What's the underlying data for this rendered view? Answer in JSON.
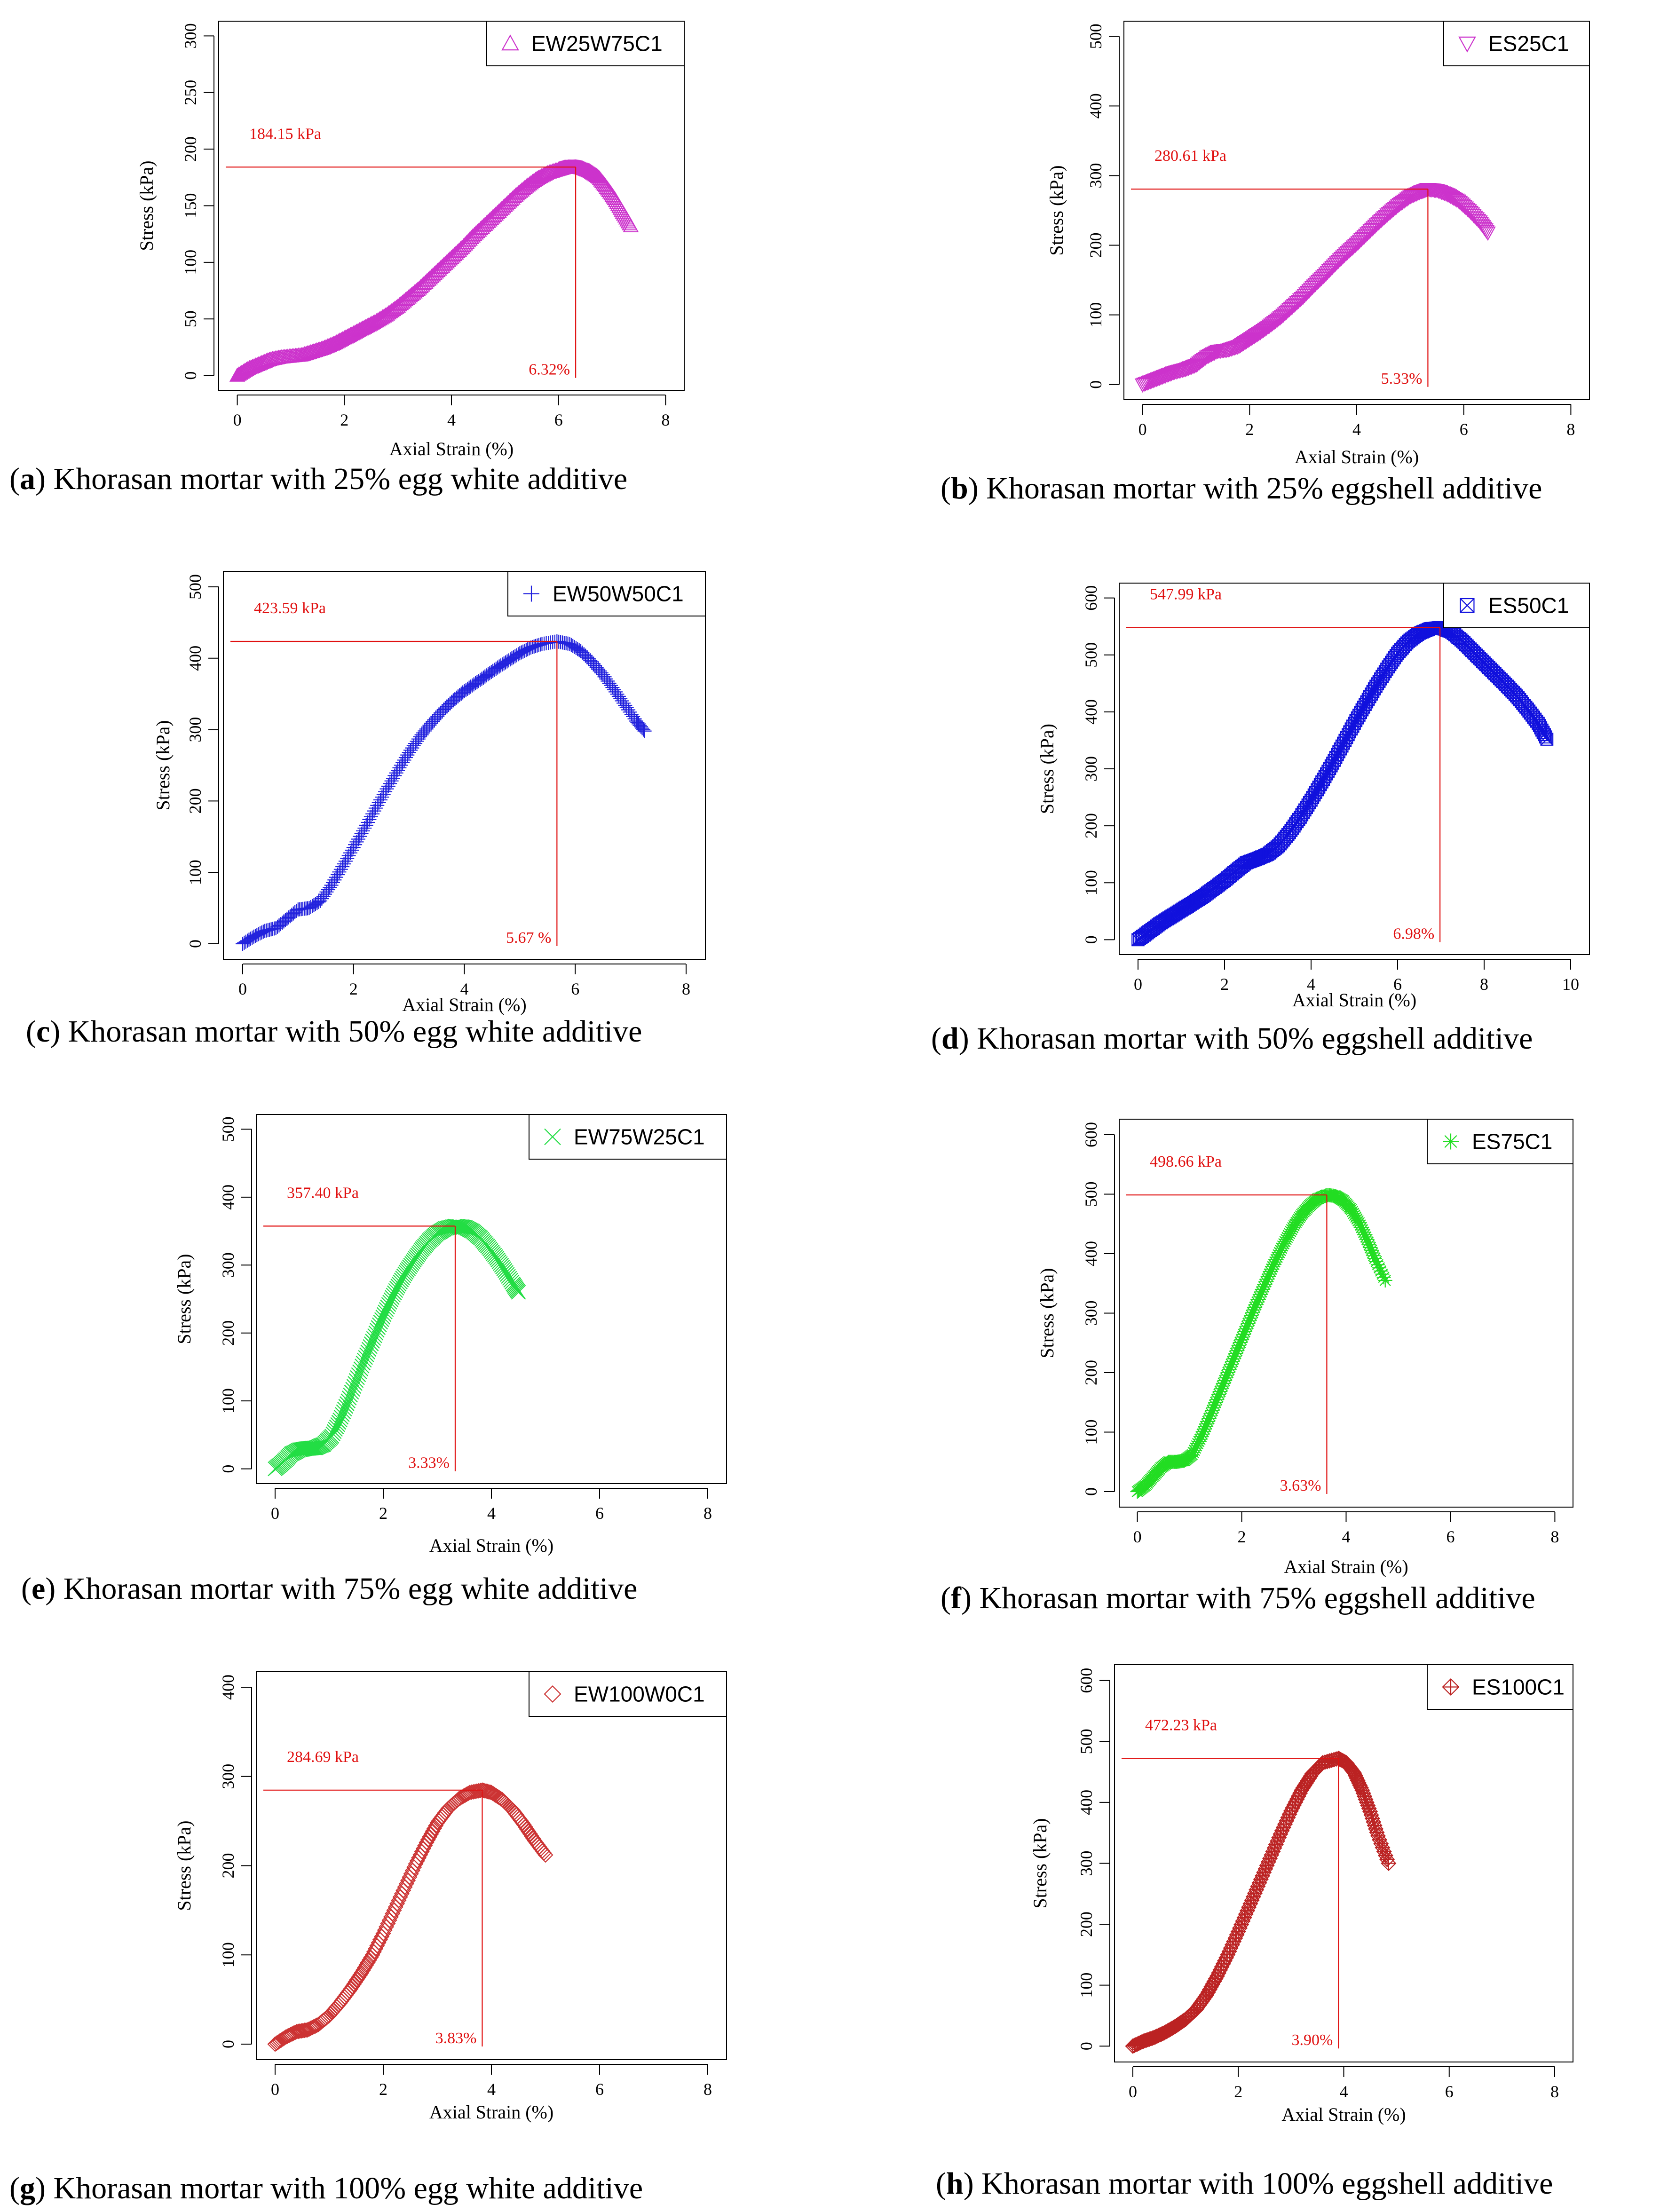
{
  "figure": {
    "panels": [
      {
        "id": "a",
        "caption_letter": "a",
        "caption_text": "Khorasan mortar with 25% egg white additive",
        "color": "#cc33cc",
        "marker": "triangle-up",
        "peak_label": "184.15 kPa",
        "strain_label": "6.32%"
      },
      {
        "id": "b",
        "caption_letter": "b",
        "caption_text": "Khorasan mortar with 25% eggshell additive",
        "color": "#cc33cc",
        "marker": "triangle-down",
        "peak_label": "280.61 kPa",
        "strain_label": "5.33%"
      },
      {
        "id": "c",
        "caption_letter": "c",
        "caption_text": "Khorasan mortar with 50% egg white additive",
        "color": "#2222dd",
        "marker": "plus",
        "peak_label": "423.59 kPa",
        "strain_label": "5.67 %"
      },
      {
        "id": "d",
        "caption_letter": "d",
        "caption_text": "Khorasan mortar with 50% eggshell additive",
        "color": "#1111dd",
        "marker": "square-x",
        "peak_label": "547.99 kPa",
        "strain_label": "6.98%"
      },
      {
        "id": "e",
        "caption_letter": "e",
        "caption_text": "Khorasan mortar with 75% egg white additive",
        "color": "#22dd44",
        "marker": "x",
        "peak_label": "357.40 kPa",
        "strain_label": "3.33%"
      },
      {
        "id": "f",
        "caption_letter": "f",
        "caption_text": "Khorasan mortar with 75% eggshell additive",
        "color": "#22dd22",
        "marker": "asterisk",
        "peak_label": "498.66 kPa",
        "strain_label": "3.63%"
      },
      {
        "id": "g",
        "caption_letter": "g",
        "caption_text": "Khorasan mortar with 100% egg white additive",
        "color": "#cc3333",
        "marker": "diamond",
        "peak_label": "284.69 kPa",
        "strain_label": "3.83%"
      },
      {
        "id": "h",
        "caption_letter": "h",
        "caption_text": "Khorasan mortar with 100% eggshell additive",
        "color": "#bb2222",
        "marker": "diamond-plus",
        "peak_label": "472.23 kPa",
        "strain_label": "3.90%"
      }
    ]
  },
  "chart_data": [
    {
      "type": "scatter",
      "panel": "a",
      "xlabel": "Axial Strain (%)",
      "ylabel": "Stress (kPa)",
      "xlim": [
        0,
        8
      ],
      "ylim": [
        0,
        300
      ],
      "xticks": [
        0,
        2,
        4,
        6,
        8
      ],
      "yticks": [
        0,
        50,
        100,
        150,
        200,
        250,
        300
      ],
      "legend": "EW25W75C1",
      "legend_position": "top-right",
      "peak": {
        "strain": 6.32,
        "stress": 184.15
      },
      "x": [
        0,
        0.2,
        0.4,
        0.6,
        0.8,
        1.0,
        1.2,
        1.4,
        1.6,
        1.8,
        2.0,
        2.2,
        2.4,
        2.6,
        2.8,
        3.0,
        3.2,
        3.4,
        3.6,
        3.8,
        4.0,
        4.2,
        4.4,
        4.6,
        4.8,
        5.0,
        5.2,
        5.4,
        5.6,
        5.8,
        6.0,
        6.1,
        6.2,
        6.32,
        6.45,
        6.6,
        6.75,
        6.9,
        7.05,
        7.2,
        7.35
      ],
      "y": [
        0,
        6,
        10,
        14,
        16,
        17,
        18,
        21,
        24,
        28,
        33,
        38,
        43,
        48,
        54,
        61,
        69,
        77,
        86,
        95,
        104,
        113,
        123,
        132,
        141,
        150,
        159,
        167,
        174,
        179,
        182,
        183.5,
        184,
        184.15,
        183,
        180,
        175,
        166,
        156,
        144,
        132
      ]
    },
    {
      "type": "scatter",
      "panel": "b",
      "xlabel": "Axial Strain (%)",
      "ylabel": "Stress (kPa)",
      "xlim": [
        0,
        8
      ],
      "ylim": [
        0,
        500
      ],
      "xticks": [
        0,
        2,
        4,
        6,
        8
      ],
      "yticks": [
        0,
        100,
        200,
        300,
        400,
        500
      ],
      "legend": "ES25C1",
      "legend_position": "top-right",
      "peak": {
        "strain": 5.33,
        "stress": 280.61
      },
      "x": [
        0,
        0.2,
        0.4,
        0.6,
        0.8,
        1.0,
        1.2,
        1.4,
        1.6,
        1.8,
        2.0,
        2.2,
        2.4,
        2.6,
        2.8,
        3.0,
        3.2,
        3.4,
        3.6,
        3.8,
        4.0,
        4.2,
        4.4,
        4.6,
        4.8,
        5.0,
        5.2,
        5.33,
        5.5,
        5.7,
        5.9,
        6.1,
        6.3,
        6.45
      ],
      "y": [
        0,
        6,
        12,
        18,
        22,
        28,
        40,
        48,
        50,
        55,
        65,
        75,
        86,
        98,
        112,
        126,
        142,
        157,
        173,
        188,
        202,
        217,
        232,
        246,
        259,
        270,
        277,
        280.61,
        279,
        273,
        264,
        250,
        234,
        218
      ]
    },
    {
      "type": "scatter",
      "panel": "c",
      "xlabel": "Axial Strain (%)",
      "ylabel": "Stress (kPa)",
      "xlim": [
        0,
        8
      ],
      "ylim": [
        0,
        500
      ],
      "xticks": [
        0,
        2,
        4,
        6,
        8
      ],
      "yticks": [
        0,
        100,
        200,
        300,
        400,
        500
      ],
      "legend": "EW50W50C1",
      "legend_position": "top-right",
      "peak": {
        "strain": 5.67,
        "stress": 423.59
      },
      "x": [
        0,
        0.2,
        0.4,
        0.6,
        0.8,
        1.0,
        1.2,
        1.4,
        1.6,
        1.8,
        2.0,
        2.2,
        2.4,
        2.6,
        2.8,
        3.0,
        3.2,
        3.4,
        3.6,
        3.8,
        4.0,
        4.2,
        4.4,
        4.6,
        4.8,
        5.0,
        5.2,
        5.4,
        5.67,
        5.9,
        6.1,
        6.3,
        6.5,
        6.7,
        6.9,
        7.1,
        7.25
      ],
      "y": [
        0,
        10,
        18,
        22,
        35,
        48,
        50,
        60,
        82,
        108,
        135,
        162,
        190,
        217,
        243,
        268,
        290,
        309,
        326,
        341,
        354,
        365,
        376,
        387,
        397,
        407,
        415,
        420,
        423.59,
        420,
        410,
        395,
        377,
        356,
        334,
        312,
        298
      ]
    },
    {
      "type": "scatter",
      "panel": "d",
      "xlabel": "Axial Strain (%)",
      "ylabel": "Stress (kPa)",
      "xlim": [
        0,
        10
      ],
      "ylim": [
        0,
        600
      ],
      "xticks": [
        0,
        2,
        4,
        6,
        8,
        10
      ],
      "yticks": [
        0,
        100,
        200,
        300,
        400,
        500,
        600
      ],
      "legend": "ES50C1",
      "legend_position": "top-right",
      "peak": {
        "strain": 6.98,
        "stress": 547.99
      },
      "x": [
        0,
        0.25,
        0.5,
        0.75,
        1.0,
        1.25,
        1.5,
        1.75,
        2.0,
        2.25,
        2.5,
        2.75,
        3.0,
        3.25,
        3.5,
        3.75,
        4.0,
        4.25,
        4.5,
        4.75,
        5.0,
        5.25,
        5.5,
        5.75,
        6.0,
        6.25,
        6.5,
        6.75,
        6.98,
        7.25,
        7.5,
        7.75,
        8.0,
        8.25,
        8.5,
        8.75,
        9.0,
        9.25,
        9.45
      ],
      "y": [
        0,
        14,
        28,
        40,
        52,
        64,
        76,
        90,
        104,
        120,
        135,
        142,
        150,
        165,
        188,
        215,
        245,
        277,
        310,
        345,
        380,
        413,
        445,
        475,
        503,
        524,
        538,
        546,
        547.99,
        540,
        524,
        505,
        486,
        467,
        448,
        428,
        405,
        380,
        352
      ]
    },
    {
      "type": "scatter",
      "panel": "e",
      "xlabel": "Axial Strain (%)",
      "ylabel": "Stress (kPa)",
      "xlim": [
        0,
        8
      ],
      "ylim": [
        0,
        500
      ],
      "xticks": [
        0,
        2,
        4,
        6,
        8
      ],
      "yticks": [
        0,
        100,
        200,
        300,
        400,
        500
      ],
      "legend": "EW75W25C1",
      "legend_position": "top-right",
      "peak": {
        "strain": 3.33,
        "stress": 357.4
      },
      "x": [
        0,
        0.15,
        0.3,
        0.45,
        0.6,
        0.75,
        0.9,
        1.05,
        1.2,
        1.35,
        1.5,
        1.65,
        1.8,
        1.95,
        2.1,
        2.25,
        2.4,
        2.55,
        2.7,
        2.85,
        3.0,
        3.15,
        3.33,
        3.5,
        3.65,
        3.8,
        3.95,
        4.1,
        4.25,
        4.4,
        4.5
      ],
      "y": [
        0,
        10,
        22,
        28,
        30,
        31,
        36,
        48,
        72,
        100,
        130,
        160,
        188,
        216,
        242,
        266,
        287,
        305,
        322,
        336,
        347,
        354,
        357.4,
        356,
        350,
        340,
        326,
        310,
        292,
        272,
        260
      ]
    },
    {
      "type": "scatter",
      "panel": "f",
      "xlabel": "Axial Strain (%)",
      "ylabel": "Stress (kPa)",
      "xlim": [
        0,
        8
      ],
      "ylim": [
        0,
        600
      ],
      "xticks": [
        0,
        2,
        4,
        6,
        8
      ],
      "yticks": [
        0,
        100,
        200,
        300,
        400,
        500,
        600
      ],
      "legend": "ES75C1",
      "legend_position": "top-right",
      "peak": {
        "strain": 3.63,
        "stress": 498.66
      },
      "x": [
        0,
        0.15,
        0.3,
        0.45,
        0.6,
        0.75,
        0.9,
        1.05,
        1.2,
        1.35,
        1.5,
        1.65,
        1.8,
        1.95,
        2.1,
        2.25,
        2.4,
        2.55,
        2.7,
        2.85,
        3.0,
        3.15,
        3.3,
        3.45,
        3.63,
        3.8,
        3.95,
        4.1,
        4.25,
        4.4,
        4.55,
        4.75
      ],
      "y": [
        0,
        10,
        25,
        40,
        50,
        50,
        52,
        62,
        88,
        118,
        150,
        182,
        214,
        246,
        278,
        310,
        340,
        370,
        398,
        424,
        447,
        466,
        481,
        492,
        498.66,
        497,
        489,
        474,
        452,
        424,
        392,
        355
      ]
    },
    {
      "type": "scatter",
      "panel": "g",
      "xlabel": "Axial Strain (%)",
      "ylabel": "Stress (kPa)",
      "xlim": [
        0,
        8
      ],
      "ylim": [
        0,
        400
      ],
      "xticks": [
        0,
        2,
        4,
        6,
        8
      ],
      "yticks": [
        0,
        100,
        200,
        300,
        400
      ],
      "legend": "EW100W0C1",
      "legend_position": "top-right",
      "peak": {
        "strain": 3.83,
        "stress": 284.69
      },
      "x": [
        0,
        0.2,
        0.4,
        0.6,
        0.8,
        1.0,
        1.2,
        1.4,
        1.6,
        1.8,
        2.0,
        2.2,
        2.4,
        2.6,
        2.8,
        3.0,
        3.2,
        3.4,
        3.6,
        3.83,
        4.0,
        4.2,
        4.4,
        4.6,
        4.8,
        5.0
      ],
      "y": [
        0,
        8,
        14,
        16,
        22,
        32,
        46,
        62,
        80,
        100,
        124,
        150,
        176,
        202,
        226,
        248,
        264,
        275,
        282,
        284.69,
        282,
        274,
        262,
        246,
        228,
        212
      ]
    },
    {
      "type": "scatter",
      "panel": "h",
      "xlabel": "Axial Strain (%)",
      "ylabel": "Stress (kPa)",
      "xlim": [
        0,
        8
      ],
      "ylim": [
        0,
        600
      ],
      "xticks": [
        0,
        2,
        4,
        6,
        8
      ],
      "yticks": [
        0,
        100,
        200,
        300,
        400,
        500,
        600
      ],
      "legend": "ES100C1",
      "legend_position": "top-right",
      "peak": {
        "strain": 3.9,
        "stress": 472.23
      },
      "x": [
        0,
        0.2,
        0.4,
        0.6,
        0.8,
        1.0,
        1.2,
        1.4,
        1.6,
        1.8,
        2.0,
        2.2,
        2.4,
        2.6,
        2.8,
        3.0,
        3.2,
        3.4,
        3.6,
        3.9,
        4.05,
        4.2,
        4.35,
        4.5,
        4.65,
        4.85
      ],
      "y": [
        0,
        8,
        14,
        22,
        32,
        44,
        60,
        84,
        115,
        150,
        188,
        228,
        268,
        308,
        348,
        386,
        420,
        447,
        465,
        472.23,
        465,
        448,
        420,
        385,
        345,
        300
      ]
    }
  ]
}
